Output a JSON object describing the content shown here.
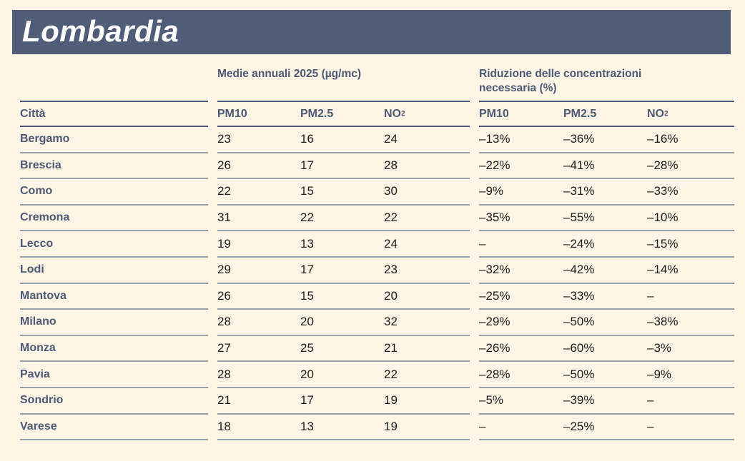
{
  "page": {
    "background": "#fdf5e6",
    "accent": "#515c77",
    "header_text_color": "#4e5a75"
  },
  "header": {
    "title": "Lombardia"
  },
  "table": {
    "group1_title": "Medie annuali 2025 (µg/mc)",
    "group2_title": "Riduzione delle concentrazioni necessaria (%)",
    "city_header": "Città",
    "col_headers": {
      "pm10": "PM10",
      "pm25": "PM2.5",
      "no2_base": "NO",
      "no2_sub": "2"
    },
    "rows": [
      {
        "city": "Bergamo",
        "pm10": "23",
        "pm25": "16",
        "no2": "24",
        "r_pm10": "–13%",
        "r_pm25": "–36%",
        "r_no2": "–16%"
      },
      {
        "city": "Brescia",
        "pm10": "26",
        "pm25": "17",
        "no2": "28",
        "r_pm10": "–22%",
        "r_pm25": "–41%",
        "r_no2": "–28%"
      },
      {
        "city": "Como",
        "pm10": "22",
        "pm25": "15",
        "no2": "30",
        "r_pm10": "–9%",
        "r_pm25": "–31%",
        "r_no2": "–33%"
      },
      {
        "city": "Cremona",
        "pm10": "31",
        "pm25": "22",
        "no2": "22",
        "r_pm10": "–35%",
        "r_pm25": "–55%",
        "r_no2": "–10%"
      },
      {
        "city": "Lecco",
        "pm10": "19",
        "pm25": "13",
        "no2": "24",
        "r_pm10": "–",
        "r_pm25": "–24%",
        "r_no2": "–15%"
      },
      {
        "city": "Lodi",
        "pm10": "29",
        "pm25": "17",
        "no2": "23",
        "r_pm10": "–32%",
        "r_pm25": "–42%",
        "r_no2": "–14%"
      },
      {
        "city": "Mantova",
        "pm10": "26",
        "pm25": "15",
        "no2": "20",
        "r_pm10": "–25%",
        "r_pm25": "–33%",
        "r_no2": "–"
      },
      {
        "city": "Milano",
        "pm10": "28",
        "pm25": "20",
        "no2": "32",
        "r_pm10": "–29%",
        "r_pm25": "–50%",
        "r_no2": "–38%"
      },
      {
        "city": "Monza",
        "pm10": "27",
        "pm25": "25",
        "no2": "21",
        "r_pm10": "–26%",
        "r_pm25": "–60%",
        "r_no2": "–3%"
      },
      {
        "city": "Pavia",
        "pm10": "28",
        "pm25": "20",
        "no2": "22",
        "r_pm10": "–28%",
        "r_pm25": "–50%",
        "r_no2": "–9%"
      },
      {
        "city": "Sondrio",
        "pm10": "21",
        "pm25": "17",
        "no2": "19",
        "r_pm10": "–5%",
        "r_pm25": "–39%",
        "r_no2": "–"
      },
      {
        "city": "Varese",
        "pm10": "18",
        "pm25": "13",
        "no2": "19",
        "r_pm10": "–",
        "r_pm25": "–25%",
        "r_no2": "–"
      }
    ]
  }
}
